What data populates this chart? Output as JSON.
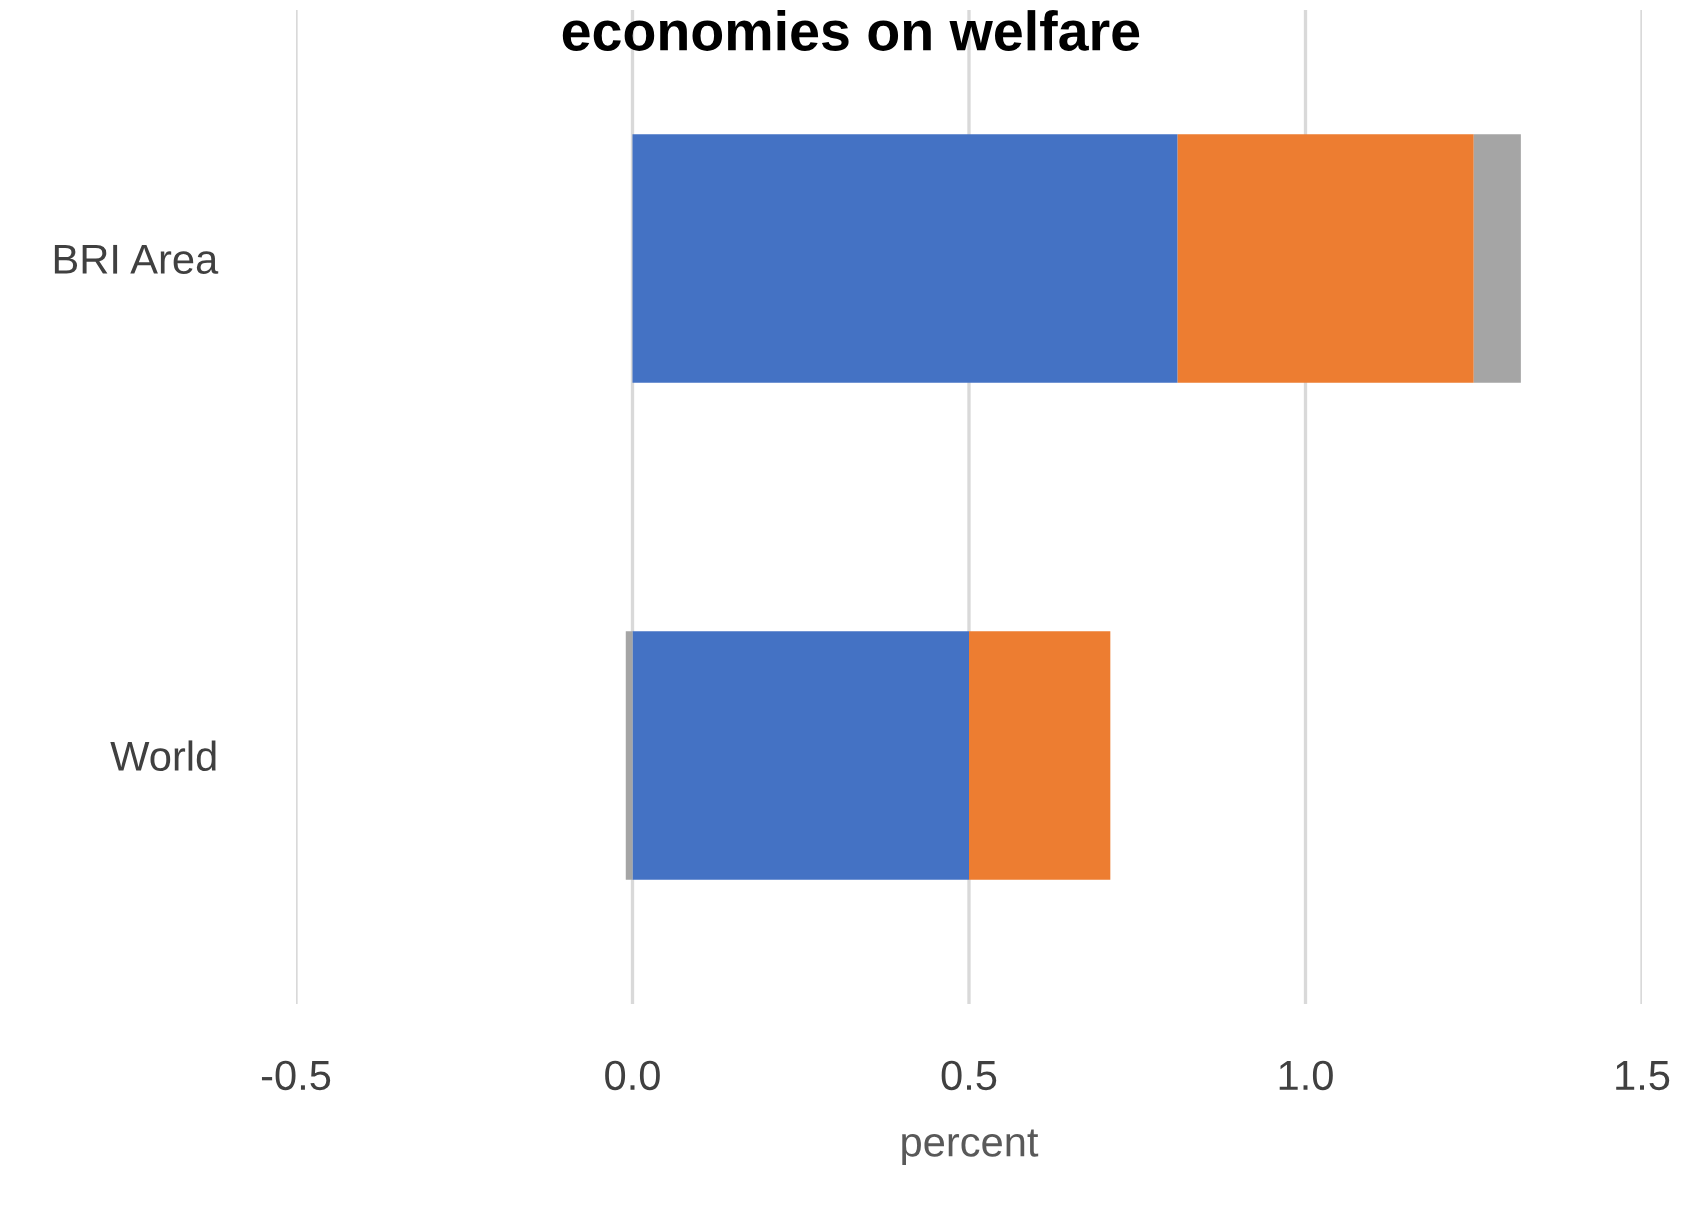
{
  "chart_data": {
    "type": "bar",
    "orientation": "horizontal",
    "stacked": true,
    "title": "economies on welfare",
    "xlabel": "percent",
    "categories": [
      "BRI Area",
      "World"
    ],
    "series": [
      {
        "color": "#4472c4",
        "values": [
          0.81,
          0.5
        ]
      },
      {
        "color": "#ed7d31",
        "values": [
          0.44,
          0.21
        ]
      },
      {
        "color": "#a5a5a5",
        "values": [
          0.07,
          -0.01
        ]
      }
    ],
    "xlim": [
      -0.5,
      1.5
    ],
    "xticks": [
      {
        "value": -0.5,
        "label": "-0.5"
      },
      {
        "value": 0,
        "label": "0.0"
      },
      {
        "value": 0.5,
        "label": "0.5"
      },
      {
        "value": 1,
        "label": "1.0"
      },
      {
        "value": 1.5,
        "label": "1.5"
      }
    ],
    "grid": "x"
  }
}
